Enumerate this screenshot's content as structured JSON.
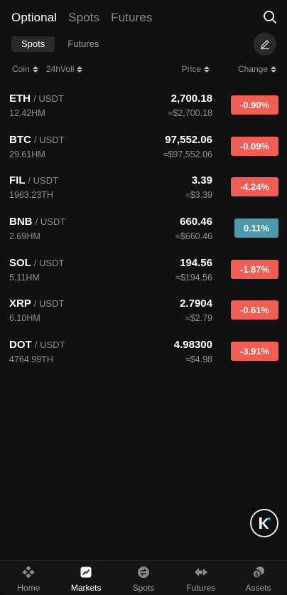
{
  "top_tabs": [
    "Optional",
    "Spots",
    "Futures"
  ],
  "sub_tabs": [
    "Spots",
    "Futures"
  ],
  "columns": {
    "coin": "Coin",
    "vol": "24hVoll",
    "price": "Price",
    "change": "Change"
  },
  "rows": [
    {
      "base": "ETH",
      "quote": "/ USDT",
      "vol": "12.42HM",
      "price": "2,700.18",
      "approx": "≈$2,700.18",
      "change": "-0.90%",
      "dir": "down"
    },
    {
      "base": "BTC",
      "quote": "/ USDT",
      "vol": "29.61HM",
      "price": "97,552.06",
      "approx": "≈$97,552.06",
      "change": "-0.09%",
      "dir": "down"
    },
    {
      "base": "FIL",
      "quote": "/ USDT",
      "vol": "1963.23TH",
      "price": "3.39",
      "approx": "≈$3.39",
      "change": "-4.24%",
      "dir": "down"
    },
    {
      "base": "BNB",
      "quote": "/ USDT",
      "vol": "2.69HM",
      "price": "660.46",
      "approx": "≈$660.46",
      "change": "0.11%",
      "dir": "up"
    },
    {
      "base": "SOL",
      "quote": "/ USDT",
      "vol": "5.11HM",
      "price": "194.56",
      "approx": "≈$194.56",
      "change": "-1.87%",
      "dir": "down"
    },
    {
      "base": "XRP",
      "quote": "/ USDT",
      "vol": "6.10HM",
      "price": "2.7904",
      "approx": "≈$2.79",
      "change": "-0.61%",
      "dir": "down"
    },
    {
      "base": "DOT",
      "quote": "/ USDT",
      "vol": "4764.99TH",
      "price": "4.98300",
      "approx": "≈$4.98",
      "change": "-3.91%",
      "dir": "down"
    }
  ],
  "bottom_nav": [
    {
      "label": "Home",
      "icon": "home-icon"
    },
    {
      "label": "Markets",
      "icon": "markets-icon"
    },
    {
      "label": "Spots",
      "icon": "spots-icon"
    },
    {
      "label": "Futures",
      "icon": "futures-icon"
    },
    {
      "label": "Assets",
      "icon": "assets-icon"
    }
  ],
  "colors": {
    "down": "#f15d52",
    "up": "#4a9bb0",
    "background": "#111111"
  }
}
